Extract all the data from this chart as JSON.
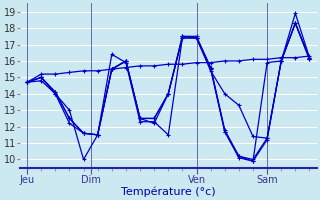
{
  "background_color": "#cce8f0",
  "grid_color": "#ffffff",
  "line_color": "#0000cc",
  "marker_color": "#0000cc",
  "xlabel": "Température (°c)",
  "xlabel_fontsize": 8,
  "tick_fontsize": 7,
  "ylim": [
    9.5,
    19.5
  ],
  "yticks": [
    10,
    11,
    12,
    13,
    14,
    15,
    16,
    17,
    18,
    19
  ],
  "day_labels": [
    "Jeu",
    "Dim",
    "Ven",
    "Sam"
  ],
  "total_xticks": 42,
  "series": [
    [
      14.7,
      15.0,
      14.1,
      12.5,
      11.6,
      11.5,
      15.5,
      16.0,
      12.5,
      12.5,
      14.0,
      17.5,
      17.5,
      15.6,
      11.8,
      10.2,
      9.9,
      15.9,
      16.0,
      18.3,
      16.2
    ],
    [
      14.7,
      15.0,
      14.1,
      12.5,
      11.6,
      11.5,
      16.4,
      15.9,
      12.3,
      12.3,
      11.5,
      17.4,
      17.4,
      15.4,
      14.0,
      13.3,
      11.4,
      11.3,
      16.0,
      18.9,
      16.2
    ],
    [
      14.7,
      15.0,
      14.0,
      13.0,
      10.0,
      11.5,
      15.5,
      16.0,
      12.5,
      12.2,
      14.0,
      17.5,
      17.4,
      15.5,
      11.7,
      10.1,
      9.9,
      11.2,
      16.0,
      18.3,
      16.1
    ],
    [
      14.7,
      14.8,
      14.0,
      12.2,
      11.6,
      11.5,
      15.5,
      16.0,
      12.5,
      12.5,
      14.0,
      17.4,
      17.4,
      15.6,
      11.7,
      10.2,
      10.0,
      11.3,
      16.0,
      18.3,
      16.1
    ],
    [
      14.7,
      15.2,
      15.2,
      15.3,
      15.4,
      15.4,
      15.5,
      15.6,
      15.7,
      15.7,
      15.8,
      15.8,
      15.9,
      15.9,
      16.0,
      16.0,
      16.1,
      16.1,
      16.2,
      16.2,
      16.3
    ]
  ],
  "x_positions": [
    0,
    1,
    2,
    3,
    4,
    5,
    6,
    7,
    8,
    9,
    10,
    11,
    12,
    13,
    14,
    15,
    16,
    17,
    18,
    19,
    20
  ]
}
